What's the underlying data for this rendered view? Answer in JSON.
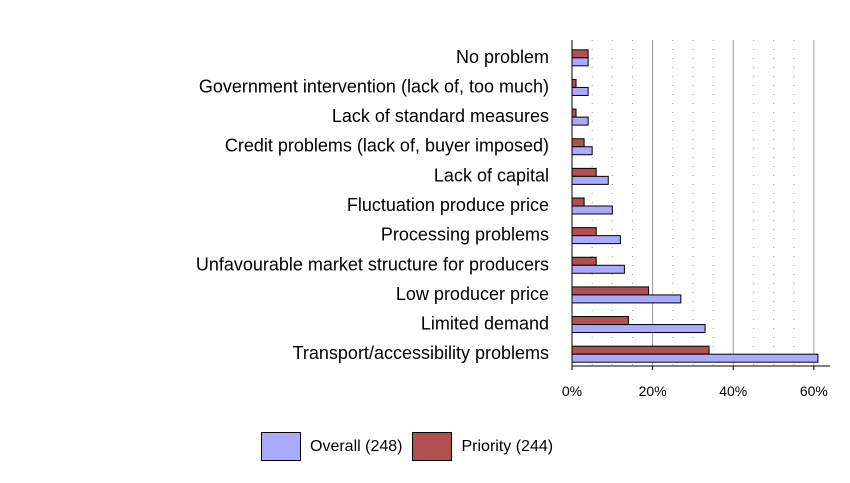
{
  "chart_data": {
    "type": "bar",
    "orientation": "horizontal",
    "title": "",
    "xlabel": "",
    "ylabel": "",
    "xlim": [
      0,
      0.64
    ],
    "xticks": [
      0,
      0.2,
      0.4,
      0.6
    ],
    "xtick_labels": [
      "0%",
      "20%",
      "40%",
      "60%"
    ],
    "grid": true,
    "legend_position": "bottom",
    "categories": [
      "No problem",
      "Government intervention (lack of, too much)",
      "Lack of standard measures",
      "Credit problems (lack of, buyer imposed)",
      "Lack of capital",
      "Fluctuation produce price",
      "Processing problems",
      "Unfavourable market structure for producers",
      "Low producer price",
      "Limited demand",
      "Transport/accessibility problems"
    ],
    "series": [
      {
        "name": "Overall (248)",
        "color": "#aaaaff",
        "values": [
          0.04,
          0.04,
          0.04,
          0.05,
          0.09,
          0.1,
          0.12,
          0.13,
          0.27,
          0.33,
          0.61
        ]
      },
      {
        "name": "Priority (244)",
        "color": "#b05050",
        "values": [
          0.04,
          0.01,
          0.01,
          0.03,
          0.06,
          0.03,
          0.06,
          0.06,
          0.19,
          0.14,
          0.34
        ]
      }
    ]
  }
}
